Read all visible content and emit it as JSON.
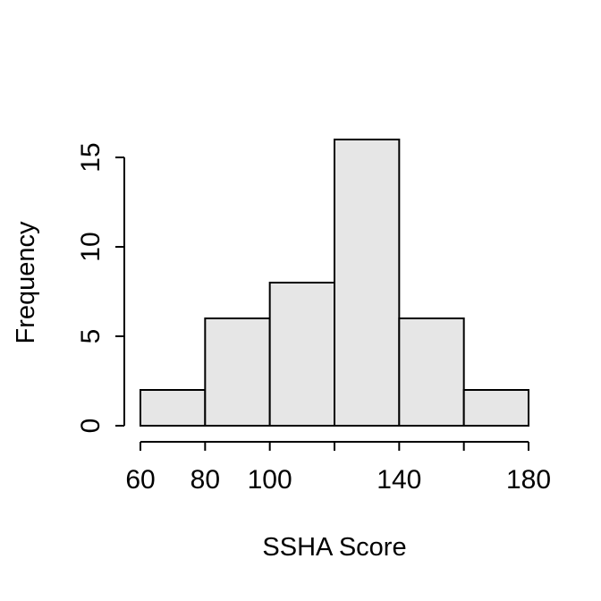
{
  "chart_data": {
    "type": "bar",
    "subtype": "histogram",
    "title": "",
    "xlabel": "SSHA Score",
    "ylabel": "Frequency",
    "bins": [
      {
        "start": 60,
        "end": 80,
        "count": 2
      },
      {
        "start": 80,
        "end": 100,
        "count": 6
      },
      {
        "start": 100,
        "end": 120,
        "count": 8
      },
      {
        "start": 120,
        "end": 140,
        "count": 16
      },
      {
        "start": 140,
        "end": 160,
        "count": 6
      },
      {
        "start": 160,
        "end": 180,
        "count": 2
      }
    ],
    "x_ticks": [
      60,
      80,
      100,
      120,
      140,
      160,
      180
    ],
    "x_tick_labels": [
      "60",
      "80",
      "100",
      "",
      "140",
      "",
      "180"
    ],
    "y_ticks": [
      0,
      5,
      10,
      15
    ],
    "y_tick_labels": [
      "0",
      "5",
      "10",
      "15"
    ],
    "xlim": [
      60,
      180
    ],
    "ylim": [
      0,
      16
    ],
    "grid": false,
    "legend": "none",
    "colors": {
      "bar_fill": "#e6e6e6",
      "bar_stroke": "#000000",
      "axis": "#000000"
    }
  }
}
